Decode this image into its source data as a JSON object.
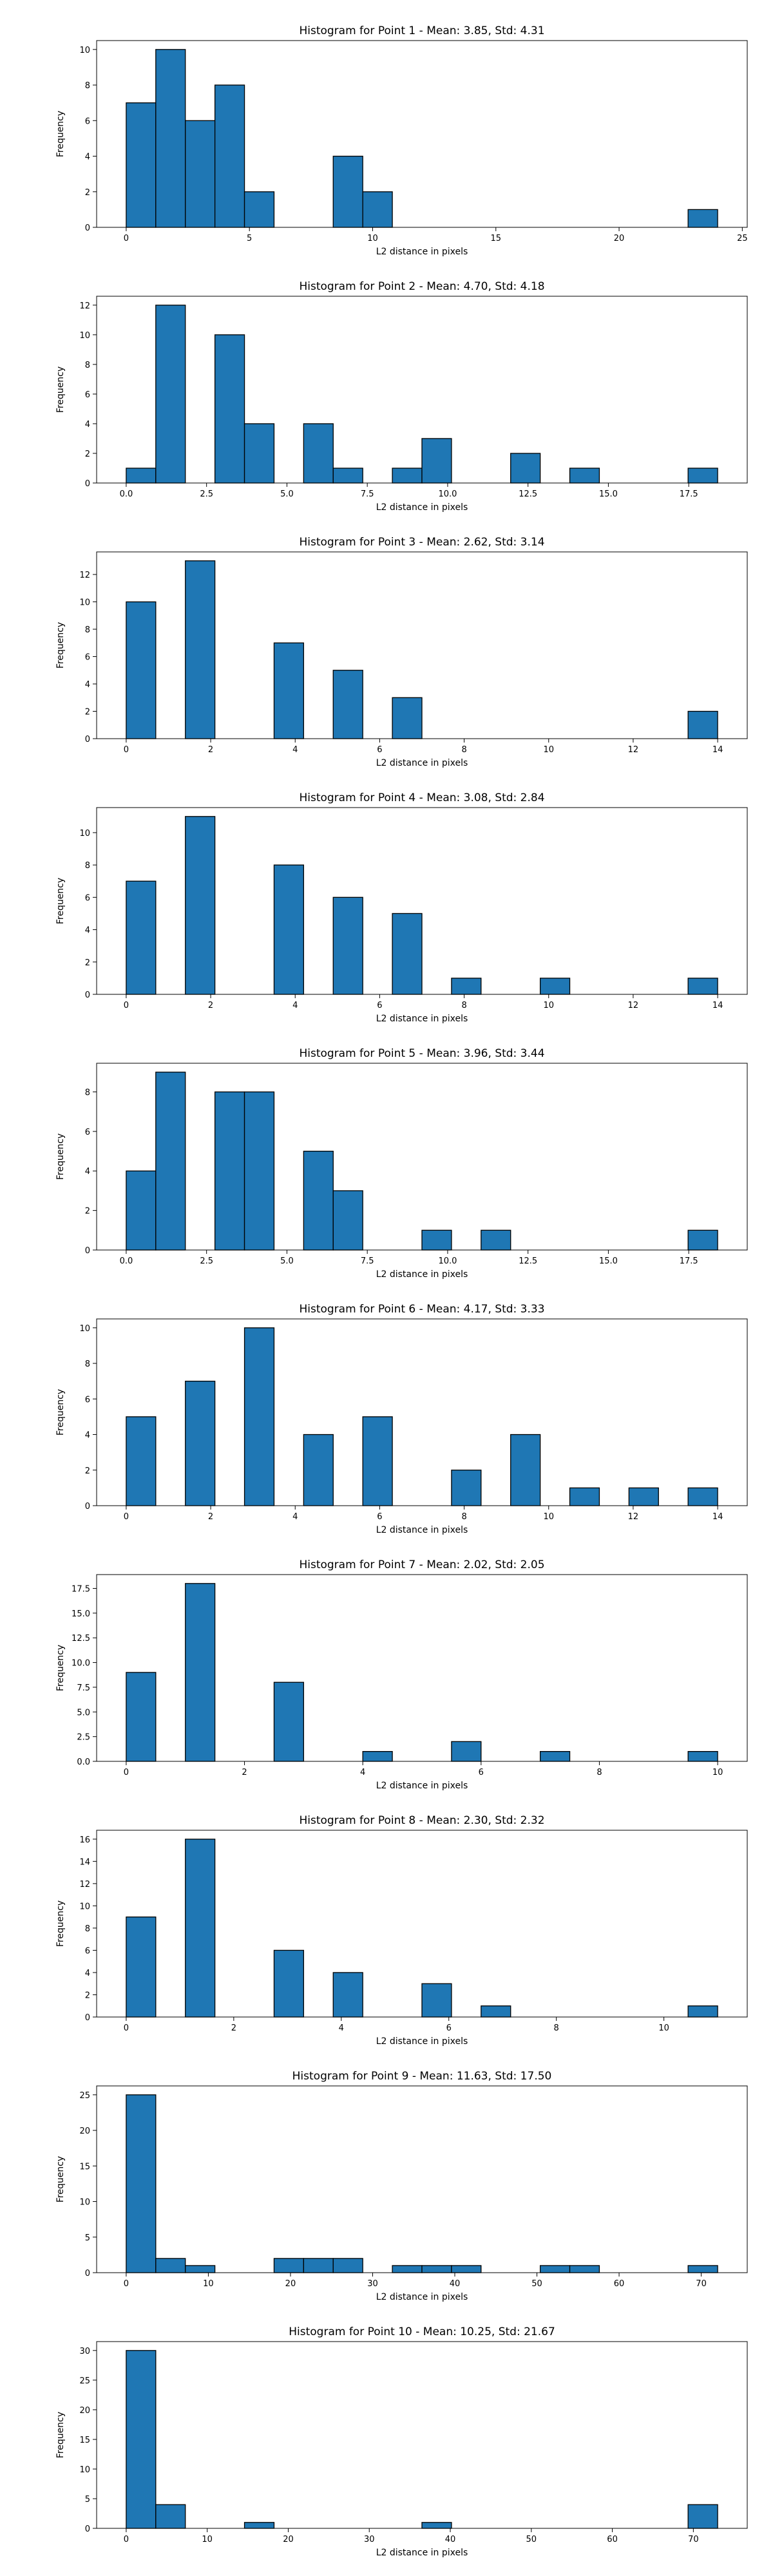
{
  "colors": {
    "bar_fill": "#1f77b4",
    "bar_edge": "#000000",
    "axis": "#000000",
    "background": "#ffffff"
  },
  "chart_data": [
    {
      "type": "bar",
      "title": "Histogram for Point 1 - Mean: 3.85, Std: 4.31",
      "xlabel": "L2 distance in pixels",
      "ylabel": "Frequency",
      "xlim": [
        -1.2,
        25.2
      ],
      "ylim": [
        0,
        10.5
      ],
      "xticks": [
        0,
        5,
        10,
        15,
        20,
        25
      ],
      "xtick_labels": [
        "0",
        "5",
        "10",
        "15",
        "20",
        "25"
      ],
      "yticks": [
        0,
        2,
        4,
        6,
        8,
        10
      ],
      "ytick_labels": [
        "0",
        "2",
        "4",
        "6",
        "8",
        "10"
      ],
      "bin_edges": [
        0.0,
        1.2,
        2.4,
        3.6,
        4.8,
        6.0,
        7.2,
        8.4,
        9.6,
        10.8,
        12.0,
        13.2,
        14.4,
        15.6,
        16.8,
        18.0,
        19.2,
        20.4,
        21.6,
        22.8,
        24.0
      ],
      "counts": [
        7,
        10,
        6,
        8,
        2,
        0,
        0,
        4,
        2,
        0,
        0,
        0,
        0,
        0,
        0,
        0,
        0,
        0,
        0,
        1
      ]
    },
    {
      "type": "bar",
      "title": "Histogram for Point 2 - Mean: 4.70, Std: 4.18",
      "xlabel": "L2 distance in pixels",
      "ylabel": "Frequency",
      "xlim": [
        -0.92,
        19.32
      ],
      "ylim": [
        0,
        12.6
      ],
      "xticks": [
        0,
        2.5,
        5,
        7.5,
        10,
        12.5,
        15,
        17.5
      ],
      "xtick_labels": [
        "0.0",
        "2.5",
        "5.0",
        "7.5",
        "10.0",
        "12.5",
        "15.0",
        "17.5"
      ],
      "yticks": [
        0,
        2,
        4,
        6,
        8,
        10,
        12
      ],
      "ytick_labels": [
        "0",
        "2",
        "4",
        "6",
        "8",
        "10",
        "12"
      ],
      "bin_edges": [
        0.0,
        0.92,
        1.84,
        2.76,
        3.68,
        4.6,
        5.52,
        6.44,
        7.36,
        8.28,
        9.2,
        10.12,
        11.04,
        11.96,
        12.88,
        13.8,
        14.72,
        15.64,
        16.56,
        17.48,
        18.4
      ],
      "counts": [
        1,
        12,
        0,
        10,
        4,
        0,
        4,
        1,
        0,
        1,
        3,
        0,
        0,
        2,
        0,
        1,
        0,
        0,
        0,
        1
      ]
    },
    {
      "type": "bar",
      "title": "Histogram for Point 3 - Mean: 2.62, Std: 3.14",
      "xlabel": "L2 distance in pixels",
      "ylabel": "Frequency",
      "xlim": [
        -0.7,
        14.7
      ],
      "ylim": [
        0,
        13.65
      ],
      "xticks": [
        0,
        2,
        4,
        6,
        8,
        10,
        12,
        14
      ],
      "xtick_labels": [
        "0",
        "2",
        "4",
        "6",
        "8",
        "10",
        "12",
        "14"
      ],
      "yticks": [
        0,
        2,
        4,
        6,
        8,
        10,
        12
      ],
      "ytick_labels": [
        "0",
        "2",
        "4",
        "6",
        "8",
        "10",
        "12"
      ],
      "bin_edges": [
        0.0,
        0.7,
        1.4,
        2.1,
        2.8,
        3.5,
        4.2,
        4.9,
        5.6,
        6.3,
        7.0,
        7.7,
        8.4,
        9.1,
        9.8,
        10.5,
        11.2,
        11.9,
        12.6,
        13.3,
        14.0
      ],
      "counts": [
        10,
        0,
        13,
        0,
        0,
        7,
        0,
        5,
        0,
        3,
        0,
        0,
        0,
        0,
        0,
        0,
        0,
        0,
        0,
        2
      ]
    },
    {
      "type": "bar",
      "title": "Histogram for Point 4 - Mean: 3.08, Std: 2.84",
      "xlabel": "L2 distance in pixels",
      "ylabel": "Frequency",
      "xlim": [
        -0.7,
        14.7
      ],
      "ylim": [
        0,
        11.55
      ],
      "xticks": [
        0,
        2,
        4,
        6,
        8,
        10,
        12,
        14
      ],
      "xtick_labels": [
        "0",
        "2",
        "4",
        "6",
        "8",
        "10",
        "12",
        "14"
      ],
      "yticks": [
        0,
        2,
        4,
        6,
        8,
        10
      ],
      "ytick_labels": [
        "0",
        "2",
        "4",
        "6",
        "8",
        "10"
      ],
      "bin_edges": [
        0.0,
        0.7,
        1.4,
        2.1,
        2.8,
        3.5,
        4.2,
        4.9,
        5.6,
        6.3,
        7.0,
        7.7,
        8.4,
        9.1,
        9.8,
        10.5,
        11.2,
        11.9,
        12.6,
        13.3,
        14.0
      ],
      "counts": [
        7,
        0,
        11,
        0,
        0,
        8,
        0,
        6,
        0,
        5,
        0,
        1,
        0,
        0,
        1,
        0,
        0,
        0,
        0,
        1
      ]
    },
    {
      "type": "bar",
      "title": "Histogram for Point 5 - Mean: 3.96, Std: 3.44",
      "xlabel": "L2 distance in pixels",
      "ylabel": "Frequency",
      "xlim": [
        -0.92,
        19.32
      ],
      "ylim": [
        0,
        9.45
      ],
      "xticks": [
        0,
        2.5,
        5,
        7.5,
        10,
        12.5,
        15,
        17.5
      ],
      "xtick_labels": [
        "0.0",
        "2.5",
        "5.0",
        "7.5",
        "10.0",
        "12.5",
        "15.0",
        "17.5"
      ],
      "yticks": [
        0,
        2,
        4,
        6,
        8
      ],
      "ytick_labels": [
        "0",
        "2",
        "4",
        "6",
        "8"
      ],
      "bin_edges": [
        0.0,
        0.92,
        1.84,
        2.76,
        3.68,
        4.6,
        5.52,
        6.44,
        7.36,
        8.28,
        9.2,
        10.12,
        11.04,
        11.96,
        12.88,
        13.8,
        14.72,
        15.64,
        16.56,
        17.48,
        18.4
      ],
      "counts": [
        4,
        9,
        0,
        8,
        8,
        0,
        5,
        3,
        0,
        0,
        1,
        0,
        1,
        0,
        0,
        0,
        0,
        0,
        0,
        1
      ]
    },
    {
      "type": "bar",
      "title": "Histogram for Point 6 - Mean: 4.17, Std: 3.33",
      "xlabel": "L2 distance in pixels",
      "ylabel": "Frequency",
      "xlim": [
        -0.7,
        14.7
      ],
      "ylim": [
        0,
        10.5
      ],
      "xticks": [
        0,
        2,
        4,
        6,
        8,
        10,
        12,
        14
      ],
      "xtick_labels": [
        "0",
        "2",
        "4",
        "6",
        "8",
        "10",
        "12",
        "14"
      ],
      "yticks": [
        0,
        2,
        4,
        6,
        8,
        10
      ],
      "ytick_labels": [
        "0",
        "2",
        "4",
        "6",
        "8",
        "10"
      ],
      "bin_edges": [
        0.0,
        0.7,
        1.4,
        2.1,
        2.8,
        3.5,
        4.2,
        4.9,
        5.6,
        6.3,
        7.0,
        7.7,
        8.4,
        9.1,
        9.8,
        10.5,
        11.2,
        11.9,
        12.6,
        13.3,
        14.0
      ],
      "counts": [
        5,
        0,
        7,
        0,
        10,
        0,
        4,
        0,
        5,
        0,
        0,
        2,
        0,
        4,
        0,
        1,
        0,
        1,
        0,
        1
      ]
    },
    {
      "type": "bar",
      "title": "Histogram for Point 7 - Mean: 2.02, Std: 2.05",
      "xlabel": "L2 distance in pixels",
      "ylabel": "Frequency",
      "xlim": [
        -0.5,
        10.5
      ],
      "ylim": [
        0,
        18.9
      ],
      "xticks": [
        0,
        2,
        4,
        6,
        8,
        10
      ],
      "xtick_labels": [
        "0",
        "2",
        "4",
        "6",
        "8",
        "10"
      ],
      "yticks": [
        0,
        2.5,
        5,
        7.5,
        10,
        12.5,
        15,
        17.5
      ],
      "ytick_labels": [
        "0.0",
        "2.5",
        "5.0",
        "7.5",
        "10.0",
        "12.5",
        "15.0",
        "17.5"
      ],
      "bin_edges": [
        0.0,
        0.5,
        1.0,
        1.5,
        2.0,
        2.5,
        3.0,
        3.5,
        4.0,
        4.5,
        5.0,
        5.5,
        6.0,
        6.5,
        7.0,
        7.5,
        8.0,
        8.5,
        9.0,
        9.5,
        10.0
      ],
      "counts": [
        9,
        0,
        18,
        0,
        0,
        8,
        0,
        0,
        1,
        0,
        0,
        2,
        0,
        0,
        1,
        0,
        0,
        0,
        0,
        1
      ]
    },
    {
      "type": "bar",
      "title": "Histogram for Point 8 - Mean: 2.30, Std: 2.32",
      "xlabel": "L2 distance in pixels",
      "ylabel": "Frequency",
      "xlim": [
        -0.55,
        11.55
      ],
      "ylim": [
        0,
        16.8
      ],
      "xticks": [
        0,
        2,
        4,
        6,
        8,
        10
      ],
      "xtick_labels": [
        "0",
        "2",
        "4",
        "6",
        "8",
        "10"
      ],
      "yticks": [
        0,
        2,
        4,
        6,
        8,
        10,
        12,
        14,
        16
      ],
      "ytick_labels": [
        "0",
        "2",
        "4",
        "6",
        "8",
        "10",
        "12",
        "14",
        "16"
      ],
      "bin_edges": [
        0.0,
        0.55,
        1.1,
        1.65,
        2.2,
        2.75,
        3.3,
        3.85,
        4.4,
        4.95,
        5.5,
        6.05,
        6.6,
        7.15,
        7.7,
        8.25,
        8.8,
        9.35,
        9.9,
        10.45,
        11.0
      ],
      "counts": [
        9,
        0,
        16,
        0,
        0,
        6,
        0,
        4,
        0,
        0,
        3,
        0,
        1,
        0,
        0,
        0,
        0,
        0,
        0,
        1
      ]
    },
    {
      "type": "bar",
      "title": "Histogram for Point 9 - Mean: 11.63, Std: 17.50",
      "xlabel": "L2 distance in pixels",
      "ylabel": "Frequency",
      "xlim": [
        -3.6,
        75.6
      ],
      "ylim": [
        0,
        26.25
      ],
      "xticks": [
        0,
        10,
        20,
        30,
        40,
        50,
        60,
        70
      ],
      "xtick_labels": [
        "0",
        "10",
        "20",
        "30",
        "40",
        "50",
        "60",
        "70"
      ],
      "yticks": [
        0,
        5,
        10,
        15,
        20,
        25
      ],
      "ytick_labels": [
        "0",
        "5",
        "10",
        "15",
        "20",
        "25"
      ],
      "bin_edges": [
        0.0,
        3.6,
        7.2,
        10.8,
        14.4,
        18.0,
        21.6,
        25.2,
        28.8,
        32.4,
        36.0,
        39.6,
        43.2,
        46.8,
        50.4,
        54.0,
        57.6,
        61.2,
        64.8,
        68.4,
        72.0
      ],
      "counts": [
        25,
        2,
        1,
        0,
        0,
        2,
        2,
        2,
        0,
        1,
        1,
        1,
        0,
        0,
        1,
        1,
        0,
        0,
        0,
        1
      ]
    },
    {
      "type": "bar",
      "title": "Histogram for Point 10 - Mean: 10.25, Std: 21.67",
      "xlabel": "L2 distance in pixels",
      "ylabel": "Frequency",
      "xlim": [
        -3.65,
        76.65
      ],
      "ylim": [
        0,
        31.5
      ],
      "xticks": [
        0,
        10,
        20,
        30,
        40,
        50,
        60,
        70
      ],
      "xtick_labels": [
        "0",
        "10",
        "20",
        "30",
        "40",
        "50",
        "60",
        "70"
      ],
      "yticks": [
        0,
        5,
        10,
        15,
        20,
        25,
        30
      ],
      "ytick_labels": [
        "0",
        "5",
        "10",
        "15",
        "20",
        "25",
        "30"
      ],
      "bin_edges": [
        0.0,
        3.65,
        7.3,
        10.95,
        14.6,
        18.25,
        21.9,
        25.55,
        29.2,
        32.85,
        36.5,
        40.15,
        43.8,
        47.45,
        51.1,
        54.75,
        58.4,
        62.05,
        65.7,
        69.35,
        73.0
      ],
      "counts": [
        30,
        4,
        0,
        0,
        1,
        0,
        0,
        0,
        0,
        0,
        1,
        0,
        0,
        0,
        0,
        0,
        0,
        0,
        0,
        4
      ]
    }
  ]
}
